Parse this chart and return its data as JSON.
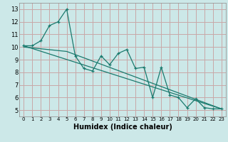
{
  "title": "",
  "xlabel": "Humidex (Indice chaleur)",
  "ylabel": "",
  "bg_color": "#cce8e8",
  "grid_color": "#c8a8a8",
  "line_color": "#1a7a6e",
  "xlim": [
    -0.5,
    23.5
  ],
  "ylim": [
    4.5,
    13.5
  ],
  "xticks": [
    0,
    1,
    2,
    3,
    4,
    5,
    6,
    7,
    8,
    9,
    10,
    11,
    12,
    13,
    14,
    15,
    16,
    17,
    18,
    19,
    20,
    21,
    22,
    23
  ],
  "yticks": [
    5,
    6,
    7,
    8,
    9,
    10,
    11,
    12,
    13
  ],
  "line1_x": [
    0,
    1,
    2,
    3,
    4,
    5,
    6,
    7,
    8,
    9,
    10,
    11,
    12,
    13,
    14,
    15,
    16,
    17,
    18,
    19,
    20,
    21,
    22,
    23
  ],
  "line1_y": [
    10.1,
    10.1,
    10.5,
    11.7,
    12.0,
    13.0,
    9.3,
    8.3,
    8.1,
    9.3,
    8.6,
    9.5,
    9.8,
    8.3,
    8.4,
    6.0,
    8.4,
    6.2,
    6.0,
    5.2,
    5.9,
    5.2,
    5.1,
    5.1
  ],
  "line2_x": [
    0,
    23
  ],
  "line2_y": [
    10.1,
    5.1
  ],
  "line3_x": [
    0,
    5,
    23
  ],
  "line3_y": [
    10.0,
    9.65,
    5.1
  ],
  "xlabel_fontsize": 7,
  "tick_fontsize_x": 5,
  "tick_fontsize_y": 6
}
